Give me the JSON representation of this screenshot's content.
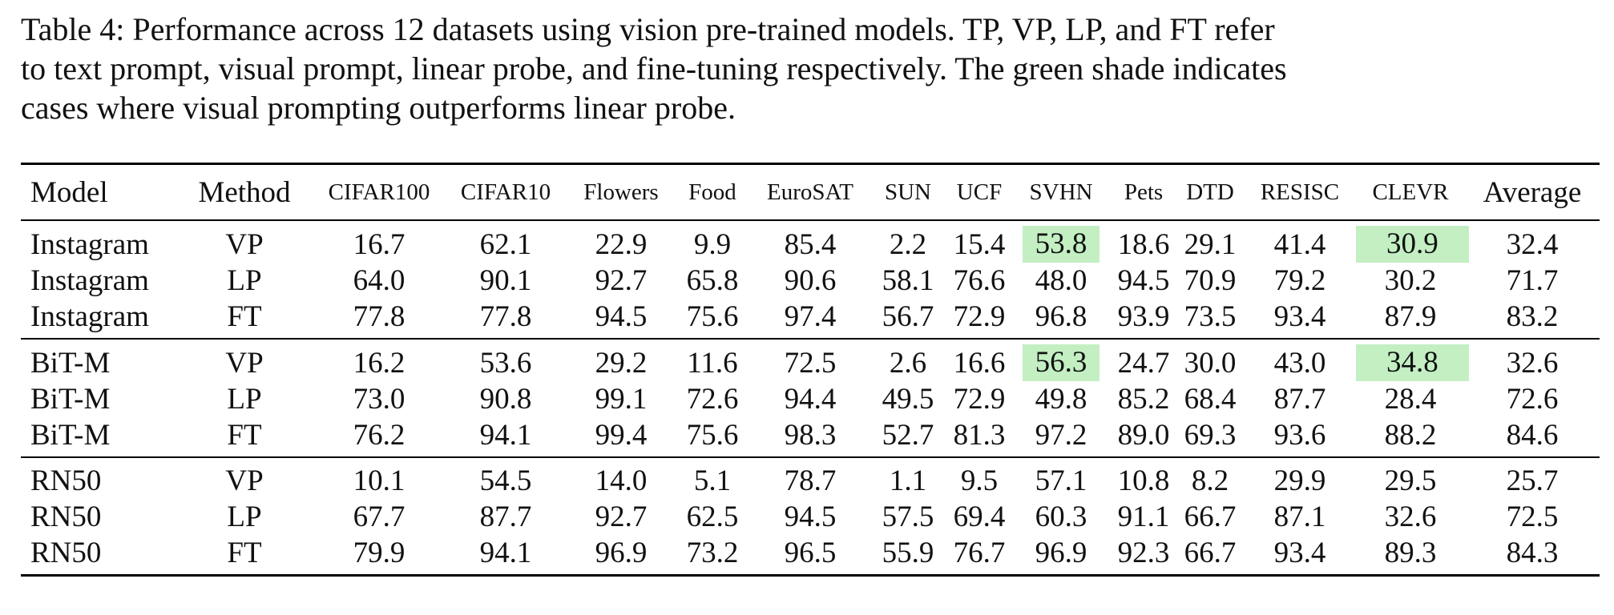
{
  "caption": {
    "line1": "Table 4: Performance across 12 datasets using vision pre-trained models. TP, VP, LP, and FT refer",
    "line2": "to text prompt, visual prompt, linear probe, and fine-tuning respectively. The green shade indicates",
    "line3": "cases where visual prompting outperforms linear probe."
  },
  "colors": {
    "highlight": "#c3efc3",
    "rule": "#000000"
  },
  "table": {
    "headers": [
      "Model",
      "Method",
      "CIFAR100",
      "CIFAR10",
      "Flowers",
      "Food",
      "EuroSAT",
      "SUN",
      "UCF",
      "SVHN",
      "Pets",
      "DTD",
      "RESISC",
      "CLEVR",
      "Average"
    ],
    "groups": [
      {
        "rows": [
          {
            "cells": [
              "Instagram",
              "VP",
              "16.7",
              "62.1",
              "22.9",
              "9.9",
              "85.4",
              "2.2",
              "15.4",
              "53.8",
              "18.6",
              "29.1",
              "41.4",
              "30.9",
              "32.4"
            ],
            "highlight": [
              9,
              13
            ]
          },
          {
            "cells": [
              "Instagram",
              "LP",
              "64.0",
              "90.1",
              "92.7",
              "65.8",
              "90.6",
              "58.1",
              "76.6",
              "48.0",
              "94.5",
              "70.9",
              "79.2",
              "30.2",
              "71.7"
            ],
            "highlight": []
          },
          {
            "cells": [
              "Instagram",
              "FT",
              "77.8",
              "77.8",
              "94.5",
              "75.6",
              "97.4",
              "56.7",
              "72.9",
              "96.8",
              "93.9",
              "73.5",
              "93.4",
              "87.9",
              "83.2"
            ],
            "highlight": []
          }
        ]
      },
      {
        "rows": [
          {
            "cells": [
              "BiT-M",
              "VP",
              "16.2",
              "53.6",
              "29.2",
              "11.6",
              "72.5",
              "2.6",
              "16.6",
              "56.3",
              "24.7",
              "30.0",
              "43.0",
              "34.8",
              "32.6"
            ],
            "highlight": [
              9,
              13
            ]
          },
          {
            "cells": [
              "BiT-M",
              "LP",
              "73.0",
              "90.8",
              "99.1",
              "72.6",
              "94.4",
              "49.5",
              "72.9",
              "49.8",
              "85.2",
              "68.4",
              "87.7",
              "28.4",
              "72.6"
            ],
            "highlight": []
          },
          {
            "cells": [
              "BiT-M",
              "FT",
              "76.2",
              "94.1",
              "99.4",
              "75.6",
              "98.3",
              "52.7",
              "81.3",
              "97.2",
              "89.0",
              "69.3",
              "93.6",
              "88.2",
              "84.6"
            ],
            "highlight": []
          }
        ]
      },
      {
        "rows": [
          {
            "cells": [
              "RN50",
              "VP",
              "10.1",
              "54.5",
              "14.0",
              "5.1",
              "78.7",
              "1.1",
              "9.5",
              "57.1",
              "10.8",
              "8.2",
              "29.9",
              "29.5",
              "25.7"
            ],
            "highlight": []
          },
          {
            "cells": [
              "RN50",
              "LP",
              "67.7",
              "87.7",
              "92.7",
              "62.5",
              "94.5",
              "57.5",
              "69.4",
              "60.3",
              "91.1",
              "66.7",
              "87.1",
              "32.6",
              "72.5"
            ],
            "highlight": []
          },
          {
            "cells": [
              "RN50",
              "FT",
              "79.9",
              "94.1",
              "96.9",
              "73.2",
              "96.5",
              "55.9",
              "76.7",
              "96.9",
              "92.3",
              "66.7",
              "93.4",
              "89.3",
              "84.3"
            ],
            "highlight": []
          }
        ]
      }
    ]
  }
}
